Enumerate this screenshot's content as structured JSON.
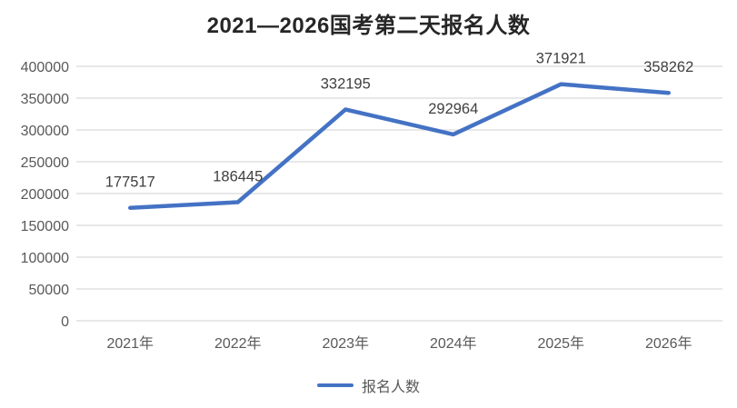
{
  "chart_data": {
    "type": "line",
    "title": "2021—2026国考第二天报名人数",
    "categories": [
      "2021年",
      "2022年",
      "2023年",
      "2024年",
      "2025年",
      "2026年"
    ],
    "series": [
      {
        "name": "报名人数",
        "values": [
          177517,
          186445,
          332195,
          292964,
          371921,
          358262
        ]
      }
    ],
    "xlabel": "",
    "ylabel": "",
    "ylim": [
      0,
      400000
    ],
    "yticks": [
      0,
      50000,
      100000,
      150000,
      200000,
      250000,
      300000,
      350000,
      400000
    ],
    "grid": true,
    "data_labels_shown": true,
    "legend_position": "bottom",
    "colors": {
      "series_line": "#4472C4",
      "gridline": "#D9D9D9",
      "axis_label": "#595959",
      "data_label": "#404040",
      "title": "#262626",
      "background": "#FFFFFF"
    }
  }
}
